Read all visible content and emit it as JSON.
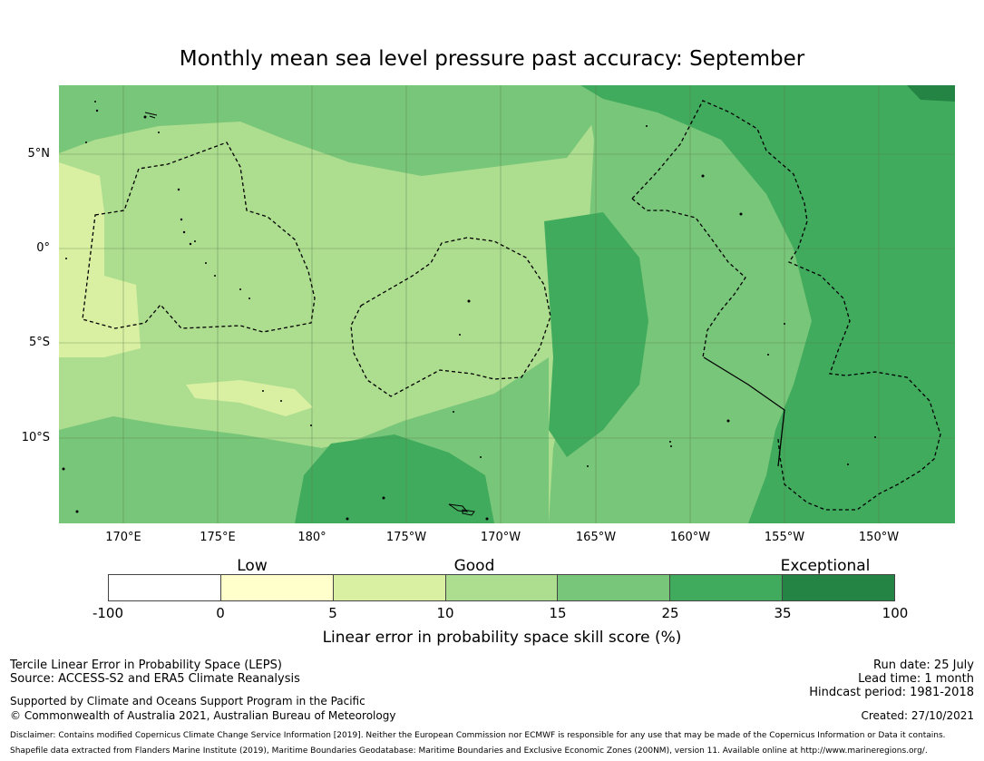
{
  "title": "Monthly mean sea level pressure past accuracy: September",
  "lat_labels": [
    "5°N",
    "0°",
    "5°S",
    "10°S"
  ],
  "lon_labels": [
    "170°E",
    "175°E",
    "180°",
    "175°W",
    "170°W",
    "165°W",
    "160°W",
    "155°W",
    "150°W"
  ],
  "categories": [
    "Low",
    "Good",
    "Exceptional"
  ],
  "colorbar": {
    "ticks": [
      "-100",
      "0",
      "5",
      "10",
      "15",
      "25",
      "35",
      "100"
    ],
    "segments": [
      {
        "from": -100,
        "to": 0,
        "color": "#ffffff"
      },
      {
        "from": 0,
        "to": 5,
        "color": "#ffffcc"
      },
      {
        "from": 5,
        "to": 10,
        "color": "#d9f0a3"
      },
      {
        "from": 10,
        "to": 15,
        "color": "#addd8e"
      },
      {
        "from": 15,
        "to": 25,
        "color": "#78c679"
      },
      {
        "from": 25,
        "to": 35,
        "color": "#41ab5d"
      },
      {
        "from": 35,
        "to": 100,
        "color": "#238443"
      }
    ],
    "label": "Linear error in probability space skill score (%)"
  },
  "footer": {
    "line1": "Tercile Linear Error in Probability Space (LEPS)",
    "line2": "Source: ACCESS-S2 and ERA5 Climate Reanalysis",
    "line3": "Supported by Climate and Oceans Support Program in the Pacific",
    "line4": "© Commonwealth of Australia 2021, Australian Bureau of Meteorology",
    "run_date": "Run date: 25 July",
    "lead_time": "Lead time: 1 month",
    "hindcast": "Hindcast period: 1981-2018",
    "created": "Created: 27/10/2021",
    "disclaimer": "Disclaimer: Contains modified Copernicus Climate Change Service Information [2019]. Neither the European Commission nor ECMWF is responsible for any use that may be made of the Copernicus Information or Data it contains.",
    "shapefile": "Shapefile data extracted from Flanders Marine Institute (2019), Maritime Boundaries Geodatabase: Maritime Boundaries and Exclusive Economic Zones (200NM), version 11. Available online at http://www.marineregions.org/."
  }
}
